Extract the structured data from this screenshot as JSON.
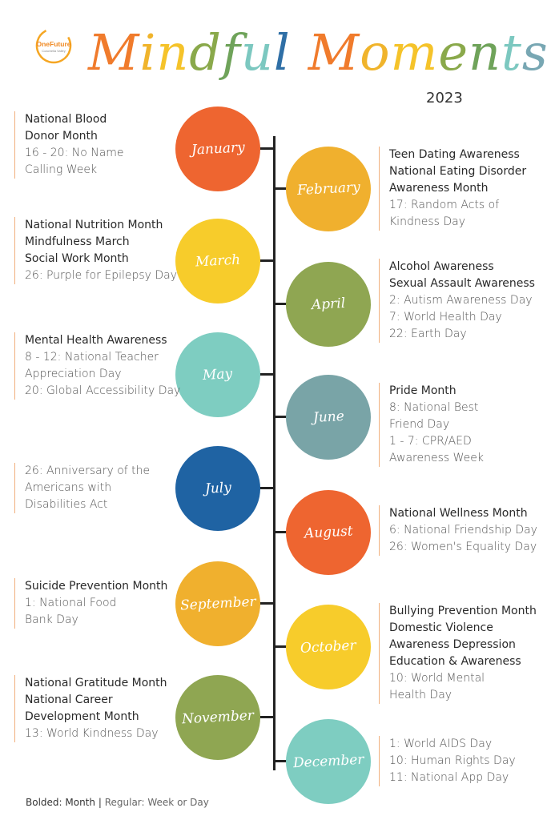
{
  "logo": {
    "name": "OneFuture",
    "subtitle": "Coachella Valley"
  },
  "title": {
    "letters": [
      {
        "ch": "M",
        "color": "#f07b2c"
      },
      {
        "ch": "i",
        "color": "#f0b42c"
      },
      {
        "ch": "n",
        "color": "#f5c32a"
      },
      {
        "ch": "d",
        "color": "#8aa94b"
      },
      {
        "ch": "f",
        "color": "#6fa35a"
      },
      {
        "ch": "u",
        "color": "#7cc8c0"
      },
      {
        "ch": "l",
        "color": "#2f6fa6"
      },
      {
        "ch": " ",
        "color": "#ffffff"
      },
      {
        "ch": "M",
        "color": "#f07b2c"
      },
      {
        "ch": "o",
        "color": "#f0b42c"
      },
      {
        "ch": "m",
        "color": "#f5c32a"
      },
      {
        "ch": "e",
        "color": "#8aa94b"
      },
      {
        "ch": "n",
        "color": "#6fa35a"
      },
      {
        "ch": "t",
        "color": "#7cc8c0"
      },
      {
        "ch": "s",
        "color": "#78a7b3"
      }
    ]
  },
  "year": "2023",
  "months": [
    {
      "name": "January",
      "color": "#ee6530",
      "side": "left",
      "lines": [
        {
          "t": "National Blood",
          "b": true
        },
        {
          "t": "Donor Month",
          "b": true
        },
        {
          "t": "16 - 20: No Name",
          "b": false
        },
        {
          "t": "Calling Week",
          "b": false
        }
      ]
    },
    {
      "name": "February",
      "color": "#f0b02e",
      "side": "right",
      "lines": [
        {
          "t": "Teen Dating Awareness",
          "b": true
        },
        {
          "t": "National Eating Disorder",
          "b": true
        },
        {
          "t": "Awareness Month",
          "b": true
        },
        {
          "t": "17: Random Acts of",
          "b": false
        },
        {
          "t": "Kindness Day",
          "b": false
        }
      ]
    },
    {
      "name": "March",
      "color": "#f7cc2b",
      "side": "left",
      "lines": [
        {
          "t": "National Nutrition Month",
          "b": true
        },
        {
          "t": "Mindfulness March",
          "b": true
        },
        {
          "t": "Social Work Month",
          "b": true
        },
        {
          "t": "26: Purple for Epilepsy Day",
          "b": false
        }
      ]
    },
    {
      "name": "April",
      "color": "#8fa652",
      "side": "right",
      "lines": [
        {
          "t": "Alcohol Awareness",
          "b": true
        },
        {
          "t": "Sexual Assault Awareness",
          "b": true
        },
        {
          "t": "2: Autism Awareness Day",
          "b": false
        },
        {
          "t": "7: World Health Day",
          "b": false
        },
        {
          "t": "22: Earth Day",
          "b": false
        }
      ]
    },
    {
      "name": "May",
      "color": "#7ecdc1",
      "side": "left",
      "lines": [
        {
          "t": "Mental Health Awareness",
          "b": true
        },
        {
          "t": "8 - 12: National Teacher",
          "b": false
        },
        {
          "t": "Appreciation Day",
          "b": false
        },
        {
          "t": "20: Global Accessibility Day",
          "b": false
        }
      ]
    },
    {
      "name": "June",
      "color": "#79a4a7",
      "side": "right",
      "lines": [
        {
          "t": "Pride Month",
          "b": true
        },
        {
          "t": "8: National Best",
          "b": false
        },
        {
          "t": "Friend Day",
          "b": false
        },
        {
          "t": "1 - 7: CPR/AED",
          "b": false
        },
        {
          "t": "Awareness Week",
          "b": false
        }
      ]
    },
    {
      "name": "July",
      "color": "#1f63a3",
      "side": "left",
      "lines": [
        {
          "t": "26: Anniversary of the",
          "b": false
        },
        {
          "t": "Americans with",
          "b": false
        },
        {
          "t": "Disabilities Act",
          "b": false
        }
      ]
    },
    {
      "name": "August",
      "color": "#ee6530",
      "side": "right",
      "lines": [
        {
          "t": "National Wellness Month",
          "b": true
        },
        {
          "t": "6: National Friendship Day",
          "b": false
        },
        {
          "t": "26: Women's Equality Day",
          "b": false
        }
      ]
    },
    {
      "name": "September",
      "color": "#f0b02e",
      "side": "left",
      "lines": [
        {
          "t": "Suicide Prevention Month",
          "b": true
        },
        {
          "t": "1: National Food",
          "b": false
        },
        {
          "t": "Bank Day",
          "b": false
        }
      ]
    },
    {
      "name": "October",
      "color": "#f7cc2b",
      "side": "right",
      "lines": [
        {
          "t": "Bullying Prevention Month",
          "b": true
        },
        {
          "t": "Domestic Violence",
          "b": true
        },
        {
          "t": "Awareness Depression",
          "b": true
        },
        {
          "t": "Education & Awareness",
          "b": true
        },
        {
          "t": "10: World Mental",
          "b": false
        },
        {
          "t": "Health Day",
          "b": false
        }
      ]
    },
    {
      "name": "November",
      "color": "#8fa652",
      "side": "left",
      "lines": [
        {
          "t": "National Gratitude Month",
          "b": true
        },
        {
          "t": "National Career",
          "b": true
        },
        {
          "t": "Development Month",
          "b": true
        },
        {
          "t": "13: World Kindness Day",
          "b": false
        }
      ]
    },
    {
      "name": "December",
      "color": "#7ecdc1",
      "side": "right",
      "lines": [
        {
          "t": "1: World AIDS Day",
          "b": false
        },
        {
          "t": "10: Human Rights Day",
          "b": false
        },
        {
          "t": "11: National App Day",
          "b": false
        }
      ]
    }
  ],
  "legend": {
    "bold": "Bolded: Month",
    "sep": "|",
    "regular": "Regular: Week or Day"
  }
}
